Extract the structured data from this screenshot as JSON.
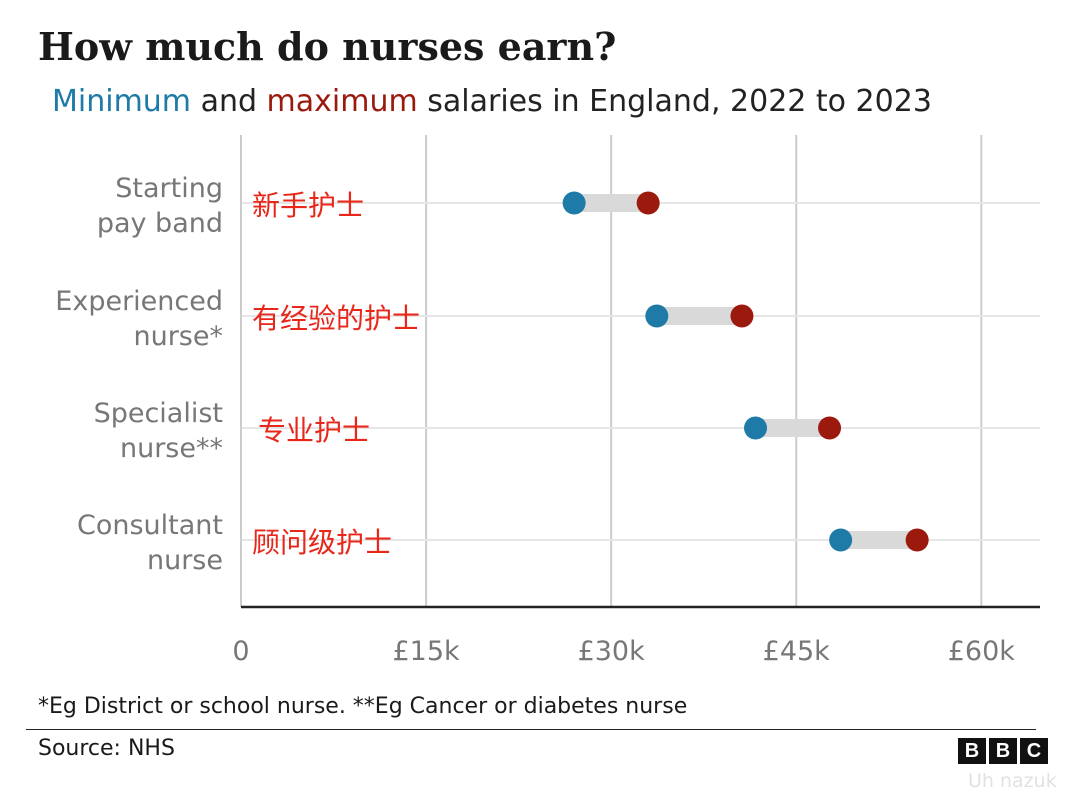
{
  "title": "How much do nurses earn?",
  "subtitle": {
    "min_word": "Minimum",
    "and_word": " and ",
    "max_word": "maximum",
    "rest": " salaries in England, 2022 to 2023"
  },
  "colors": {
    "min": "#1e7aa6",
    "max": "#9b1a0d",
    "annotation": "#e8261a",
    "range_bar": "#d9d9d9",
    "grid": "#cccccc",
    "axis": "#222222",
    "label": "#777777"
  },
  "chart_data": {
    "type": "dumbbell",
    "xlim": [
      0,
      65000
    ],
    "x_ticks": [
      0,
      15000,
      30000,
      45000,
      60000
    ],
    "x_tick_labels": [
      "0",
      "£15k",
      "£30k",
      "£45k",
      "£60k"
    ],
    "grid": true,
    "categories": [
      {
        "label": [
          "Starting",
          "pay band"
        ],
        "annotation": "新手护士",
        "min": 27000,
        "max": 33000
      },
      {
        "label": [
          "Experienced",
          "nurse*"
        ],
        "annotation": "有经验的护士",
        "min": 33700,
        "max": 40600
      },
      {
        "label": [
          "Specialist",
          "nurse**"
        ],
        "annotation": "专业护士",
        "min": 41700,
        "max": 47700
      },
      {
        "label": [
          "Consultant",
          "nurse"
        ],
        "annotation": "顾问级护士",
        "min": 48600,
        "max": 54800
      }
    ]
  },
  "footnote": "*Eg District or school nurse. **Eg Cancer or diabetes nurse",
  "source": "Source: NHS",
  "logo": [
    "B",
    "B",
    "C"
  ],
  "watermark": "Uh nazuk"
}
